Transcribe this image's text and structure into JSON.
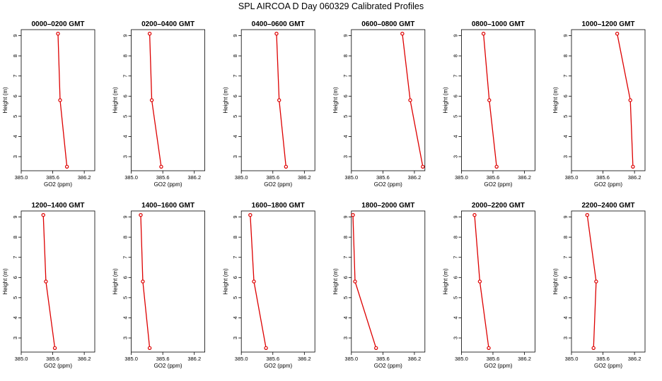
{
  "figure": {
    "title": "SPL AIRCOA D  Day 060329  Calibrated Profiles",
    "line_color": "#dd0000",
    "marker_color": "#dd0000"
  },
  "chart_data": [
    {
      "type": "line",
      "title": "0000–0200 GMT",
      "xlabel": "GO2 (ppm)",
      "ylabel": "Height (m)",
      "xlim": [
        385.0,
        386.4
      ],
      "ylim": [
        2.3,
        9.3
      ],
      "xticks": [
        "385.0",
        "385.6",
        "386.2"
      ],
      "yticks": [
        "3",
        "4",
        "5",
        "6",
        "7",
        "8",
        "9"
      ],
      "x": [
        385.87,
        385.74,
        385.7
      ],
      "y": [
        2.5,
        5.8,
        9.1
      ]
    },
    {
      "type": "line",
      "title": "0200–0400 GMT",
      "xlabel": "GO2 (ppm)",
      "ylabel": "Height (m)",
      "xlim": [
        385.0,
        386.4
      ],
      "ylim": [
        2.3,
        9.3
      ],
      "xticks": [
        "385.0",
        "385.6",
        "386.2"
      ],
      "yticks": [
        "3",
        "4",
        "5",
        "6",
        "7",
        "8",
        "9"
      ],
      "x": [
        385.57,
        385.39,
        385.35
      ],
      "y": [
        2.5,
        5.8,
        9.1
      ]
    },
    {
      "type": "line",
      "title": "0400–0600 GMT",
      "xlabel": "GO2 (ppm)",
      "ylabel": "Height (m)",
      "xlim": [
        385.0,
        386.4
      ],
      "ylim": [
        2.3,
        9.3
      ],
      "xticks": [
        "385.0",
        "385.6",
        "386.2"
      ],
      "yticks": [
        "3",
        "4",
        "5",
        "6",
        "7",
        "8",
        "9"
      ],
      "x": [
        385.85,
        385.72,
        385.67
      ],
      "y": [
        2.5,
        5.8,
        9.1
      ]
    },
    {
      "type": "line",
      "title": "0600–0800 GMT",
      "xlabel": "GO2 (ppm)",
      "ylabel": "Height (m)",
      "xlim": [
        385.0,
        386.4
      ],
      "ylim": [
        2.3,
        9.3
      ],
      "xticks": [
        "385.0",
        "385.6",
        "386.2"
      ],
      "yticks": [
        "3",
        "4",
        "5",
        "6",
        "7",
        "8",
        "9"
      ],
      "x": [
        386.36,
        386.12,
        385.97
      ],
      "y": [
        2.5,
        5.8,
        9.1
      ]
    },
    {
      "type": "line",
      "title": "0800–1000 GMT",
      "xlabel": "GO2 (ppm)",
      "ylabel": "Height (m)",
      "xlim": [
        385.0,
        386.4
      ],
      "ylim": [
        2.3,
        9.3
      ],
      "xticks": [
        "385.0",
        "385.6",
        "386.2"
      ],
      "yticks": [
        "3",
        "4",
        "5",
        "6",
        "7",
        "8",
        "9"
      ],
      "x": [
        385.67,
        385.53,
        385.42
      ],
      "y": [
        2.5,
        5.8,
        9.1
      ]
    },
    {
      "type": "line",
      "title": "1000–1200 GMT",
      "xlabel": "GO2 (ppm)",
      "ylabel": "Height (m)",
      "xlim": [
        385.0,
        386.4
      ],
      "ylim": [
        2.3,
        9.3
      ],
      "xticks": [
        "385.0",
        "385.6",
        "386.2"
      ],
      "yticks": [
        "3",
        "4",
        "5",
        "6",
        "7",
        "8",
        "9"
      ],
      "x": [
        386.17,
        386.12,
        385.87
      ],
      "y": [
        2.5,
        5.8,
        9.1
      ]
    },
    {
      "type": "line",
      "title": "1200–1400 GMT",
      "xlabel": "GO2 (ppm)",
      "ylabel": "Height (m)",
      "xlim": [
        385.0,
        386.4
      ],
      "ylim": [
        2.3,
        9.3
      ],
      "xticks": [
        "385.0",
        "385.6",
        "386.2"
      ],
      "yticks": [
        "3",
        "4",
        "5",
        "6",
        "7",
        "8",
        "9"
      ],
      "x": [
        385.64,
        385.47,
        385.42
      ],
      "y": [
        2.5,
        5.8,
        9.1
      ]
    },
    {
      "type": "line",
      "title": "1400–1600 GMT",
      "xlabel": "GO2 (ppm)",
      "ylabel": "Height (m)",
      "xlim": [
        385.0,
        386.4
      ],
      "ylim": [
        2.3,
        9.3
      ],
      "xticks": [
        "385.0",
        "385.6",
        "386.2"
      ],
      "yticks": [
        "3",
        "4",
        "5",
        "6",
        "7",
        "8",
        "9"
      ],
      "x": [
        385.35,
        385.22,
        385.18
      ],
      "y": [
        2.5,
        5.8,
        9.1
      ]
    },
    {
      "type": "line",
      "title": "1600–1800 GMT",
      "xlabel": "GO2 (ppm)",
      "ylabel": "Height (m)",
      "xlim": [
        385.0,
        386.4
      ],
      "ylim": [
        2.3,
        9.3
      ],
      "xticks": [
        "385.0",
        "385.6",
        "386.2"
      ],
      "yticks": [
        "3",
        "4",
        "5",
        "6",
        "7",
        "8",
        "9"
      ],
      "x": [
        385.47,
        385.24,
        385.17
      ],
      "y": [
        2.5,
        5.8,
        9.1
      ]
    },
    {
      "type": "line",
      "title": "1800–2000 GMT",
      "xlabel": "GO2 (ppm)",
      "ylabel": "Height (m)",
      "xlim": [
        385.0,
        386.4
      ],
      "ylim": [
        2.3,
        9.3
      ],
      "xticks": [
        "385.0",
        "385.6",
        "386.2"
      ],
      "yticks": [
        "3",
        "4",
        "5",
        "6",
        "7",
        "8",
        "9"
      ],
      "x": [
        385.47,
        385.07,
        385.03
      ],
      "y": [
        2.5,
        5.8,
        9.1
      ]
    },
    {
      "type": "line",
      "title": "2000–2200 GMT",
      "xlabel": "GO2 (ppm)",
      "ylabel": "Height (m)",
      "xlim": [
        385.0,
        386.4
      ],
      "ylim": [
        2.3,
        9.3
      ],
      "xticks": [
        "385.0",
        "385.6",
        "386.2"
      ],
      "yticks": [
        "3",
        "4",
        "5",
        "6",
        "7",
        "8",
        "9"
      ],
      "x": [
        385.52,
        385.35,
        385.25
      ],
      "y": [
        2.5,
        5.8,
        9.1
      ]
    },
    {
      "type": "line",
      "title": "2200–2400 GMT",
      "xlabel": "GO2 (ppm)",
      "ylabel": "Height (m)",
      "xlim": [
        385.0,
        386.4
      ],
      "ylim": [
        2.3,
        9.3
      ],
      "xticks": [
        "385.0",
        "385.6",
        "386.2"
      ],
      "yticks": [
        "3",
        "4",
        "5",
        "6",
        "7",
        "8",
        "9"
      ],
      "x": [
        385.42,
        385.47,
        385.3
      ],
      "y": [
        2.5,
        5.8,
        9.1
      ]
    }
  ]
}
